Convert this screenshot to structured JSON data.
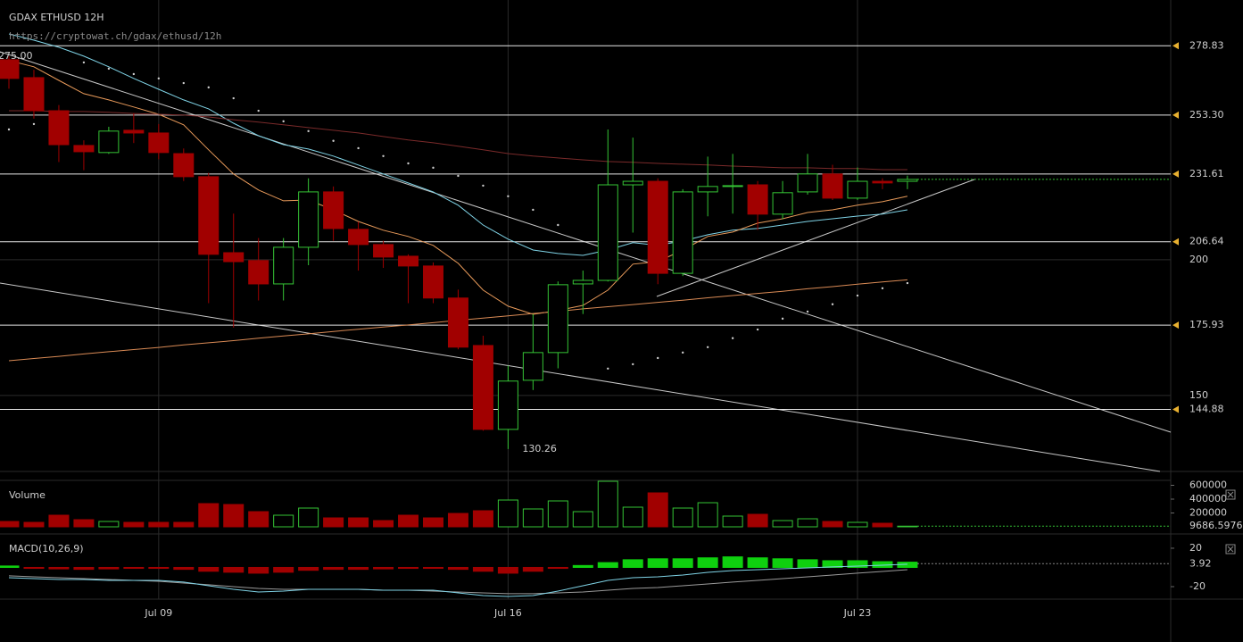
{
  "chart_data": [
    {
      "type": "candlestick",
      "title": "GDAX ETHUSD 12H",
      "subtitle": "https://cryptowat.ch/gdax/ethusd/12h",
      "categories": [
        null,
        null,
        null,
        null,
        null,
        null,
        "Jul 09",
        null,
        null,
        null,
        null,
        null,
        null,
        null,
        null,
        null,
        null,
        null,
        null,
        null,
        "Jul 16",
        null,
        null,
        null,
        null,
        null,
        null,
        null,
        null,
        null,
        null,
        null,
        null,
        null,
        "Jul 23",
        null,
        null
      ],
      "open": [
        273.7,
        267.1,
        254.9,
        242.1,
        239.5,
        247.7,
        246.7,
        239.1,
        230.6,
        202.6,
        199.7,
        191.1,
        204.6,
        225.0,
        211.2,
        205.6,
        201.3,
        197.7,
        185.9,
        168.4,
        137.5,
        155.6,
        165.8,
        191.1,
        192.4,
        227.6,
        228.9,
        195.0,
        225.0,
        227.0,
        227.6,
        216.8,
        225.0,
        231.6,
        222.7,
        228.9,
        228.9
      ],
      "high": [
        275.0,
        270.0,
        257.0,
        244.0,
        249.0,
        254.0,
        250.0,
        241.0,
        232.0,
        217.0,
        208.0,
        208.0,
        230.0,
        227.0,
        214.0,
        207.0,
        202.0,
        199.0,
        189.0,
        172.0,
        161.0,
        180.0,
        192.0,
        196.0,
        248.0,
        245.0,
        230.0,
        226.0,
        238.0,
        239.0,
        229.0,
        229.0,
        239.0,
        235.0,
        234.0,
        230.0,
        231.0
      ],
      "low": [
        263.0,
        252.0,
        236.0,
        233.0,
        239.0,
        243.0,
        237.0,
        229.0,
        184.0,
        175.0,
        185.0,
        185.0,
        198.0,
        207.0,
        196.0,
        197.0,
        184.0,
        184.0,
        167.0,
        137.0,
        130.26,
        152.0,
        160.0,
        180.0,
        192.0,
        210.0,
        191.0,
        194.0,
        216.0,
        217.0,
        211.0,
        215.0,
        224.0,
        222.0,
        222.0,
        226.0,
        226.0
      ],
      "close": [
        266.8,
        254.9,
        242.4,
        239.8,
        247.4,
        246.7,
        239.5,
        230.6,
        202.0,
        199.3,
        191.1,
        204.6,
        225.0,
        211.5,
        205.6,
        201.0,
        197.7,
        185.9,
        167.8,
        137.5,
        155.3,
        165.8,
        190.8,
        192.4,
        227.6,
        228.9,
        195.0,
        225.0,
        227.0,
        227.3,
        216.8,
        224.7,
        231.6,
        222.7,
        228.9,
        228.3,
        229.6
      ],
      "up_color": "#35c435",
      "down_color": "#a10000",
      "series": [
        {
          "color": "#7fd3e6",
          "values": [
            283.2,
            280.9,
            278.3,
            275.0,
            271.1,
            266.8,
            262.8,
            258.9,
            255.6,
            250.3,
            245.7,
            242.4,
            240.8,
            238.2,
            234.9,
            231.6,
            228.3,
            225.0,
            220.1,
            212.8,
            207.6,
            203.6,
            202.3,
            201.6,
            203.6,
            206.3,
            205.3,
            206.9,
            209.2,
            210.9,
            211.5,
            212.8,
            214.1,
            215.1,
            216.1,
            216.8,
            218.4
          ]
        },
        {
          "color": "#e89a5a",
          "values": [
            273.4,
            271.1,
            266.1,
            261.2,
            258.9,
            256.3,
            253.6,
            249.7,
            240.5,
            231.6,
            225.7,
            221.7,
            222.0,
            218.4,
            214.1,
            210.9,
            208.6,
            205.3,
            198.7,
            188.8,
            182.9,
            179.9,
            181.3,
            183.2,
            188.8,
            198.4,
            199.3,
            203.6,
            208.6,
            210.2,
            213.5,
            215.1,
            217.4,
            218.4,
            220.1,
            221.4,
            223.4
          ]
        },
        {
          "color": "#7a2a2a",
          "values": [
            254.9,
            254.9,
            254.6,
            254.6,
            254.3,
            253.9,
            253.6,
            253.3,
            252.6,
            251.6,
            250.7,
            249.7,
            248.7,
            247.7,
            246.7,
            245.4,
            244.1,
            243.1,
            241.8,
            240.5,
            239.1,
            238.2,
            237.5,
            236.8,
            236.2,
            235.9,
            235.5,
            235.2,
            234.9,
            234.5,
            234.2,
            233.9,
            233.9,
            233.6,
            233.6,
            233.2,
            233.2
          ]
        },
        {
          "color": "#d98a55",
          "values": [
            162.8,
            163.6,
            164.4,
            165.3,
            166.1,
            166.9,
            167.7,
            168.6,
            169.4,
            170.2,
            171.1,
            171.9,
            172.7,
            173.6,
            174.4,
            175.2,
            176.0,
            176.8,
            177.7,
            178.5,
            179.3,
            180.2,
            181.0,
            181.9,
            182.7,
            183.5,
            184.3,
            185.1,
            186.0,
            186.8,
            187.6,
            188.4,
            189.3,
            190.1,
            191.0,
            191.8,
            192.6
          ]
        }
      ],
      "sar": {
        "color": "#cfcfcf",
        "values": [
          248.0,
          250.0,
          254.6,
          272.7,
          270.4,
          268.4,
          266.8,
          265.1,
          263.5,
          259.5,
          254.9,
          251.0,
          247.4,
          243.8,
          241.1,
          238.2,
          235.5,
          233.9,
          230.9,
          227.3,
          223.4,
          218.4,
          212.8,
          null,
          159.9,
          161.5,
          163.8,
          165.8,
          167.8,
          171.1,
          174.3,
          178.3,
          180.9,
          183.6,
          186.8,
          189.5,
          191.4
        ]
      },
      "levels": [
        {
          "value": 278.83,
          "label": "278.83"
        },
        {
          "value": 253.3,
          "label": "253.30"
        },
        {
          "value": 231.61,
          "label": "231.61"
        },
        {
          "value": 206.64,
          "label": "206.64"
        },
        {
          "value": 175.93,
          "label": "175.93"
        },
        {
          "value": 144.88,
          "label": "144.88"
        }
      ],
      "high_label": {
        "value": 275,
        "label": "275.00"
      },
      "low_label": 130.26,
      "ylim": [
        122.0,
        295.7
      ],
      "yticks": [
        150,
        200
      ],
      "grid": true
    },
    {
      "type": "bar",
      "title": "Volume",
      "values": [
        77400,
        64500,
        167700,
        103200,
        77400,
        64500,
        64500,
        64500,
        335500,
        322600,
        219400,
        167700,
        271000,
        129000,
        129000,
        90300,
        167700,
        129000,
        193500,
        232300,
        387100,
        258100,
        374200,
        219400,
        658100,
        283900,
        490300,
        271000,
        348400,
        154800,
        180600,
        90300,
        116100,
        77400,
        64500,
        51600,
        9686.5976
      ],
      "ylim": [
        0,
        671000
      ],
      "yticks": [
        200000,
        400000,
        600000
      ]
    },
    {
      "type": "macd",
      "title": "MACD(10,26,9)",
      "histogram": [
        1.5,
        -1,
        -1.5,
        -2,
        -1.5,
        -1,
        -1,
        -2,
        -4,
        -5,
        -6,
        -5,
        -3,
        -2,
        -2,
        -1.5,
        -1,
        -1,
        -2,
        -4,
        -6,
        -4,
        -1,
        2,
        5,
        8,
        9,
        9,
        10,
        11,
        10,
        9,
        8,
        7,
        7,
        6,
        5.5
      ],
      "macd": {
        "color": "#7fd3e6",
        "values": [
          -10.7,
          -11.6,
          -12.6,
          -12.6,
          -13.5,
          -13.5,
          -13.5,
          -15.3,
          -19.1,
          -22.8,
          -25.6,
          -24.7,
          -22.8,
          -22.8,
          -22.8,
          -23.7,
          -23.7,
          -23.7,
          -26.5,
          -29.3,
          -30.2,
          -29.3,
          -24.7,
          -19.1,
          -13.5,
          -10.7,
          -9.8,
          -7.9,
          -5.1,
          -3.3,
          -2.3,
          -1.4,
          -0.5,
          0.5,
          1.4,
          2.3,
          3.3
        ]
      },
      "signal": {
        "color": "#9a9a9a",
        "values": [
          -8.8,
          -9.8,
          -10.7,
          -11.6,
          -12.6,
          -13.5,
          -14.4,
          -16.3,
          -18.1,
          -20.0,
          -21.9,
          -22.8,
          -22.8,
          -22.8,
          -22.8,
          -23.7,
          -23.7,
          -24.7,
          -25.6,
          -26.5,
          -27.4,
          -27.4,
          -26.5,
          -25.6,
          -23.7,
          -21.9,
          -20.9,
          -19.1,
          -17.2,
          -15.3,
          -13.5,
          -11.6,
          -9.8,
          -7.9,
          -6.0,
          -4.2,
          -2.3
        ]
      },
      "up_color": "#0fd00f",
      "down_color": "#a10000",
      "last": 3.92,
      "ylim": [
        -32.1,
        30.2
      ],
      "yticks": [
        -20,
        20
      ]
    }
  ]
}
